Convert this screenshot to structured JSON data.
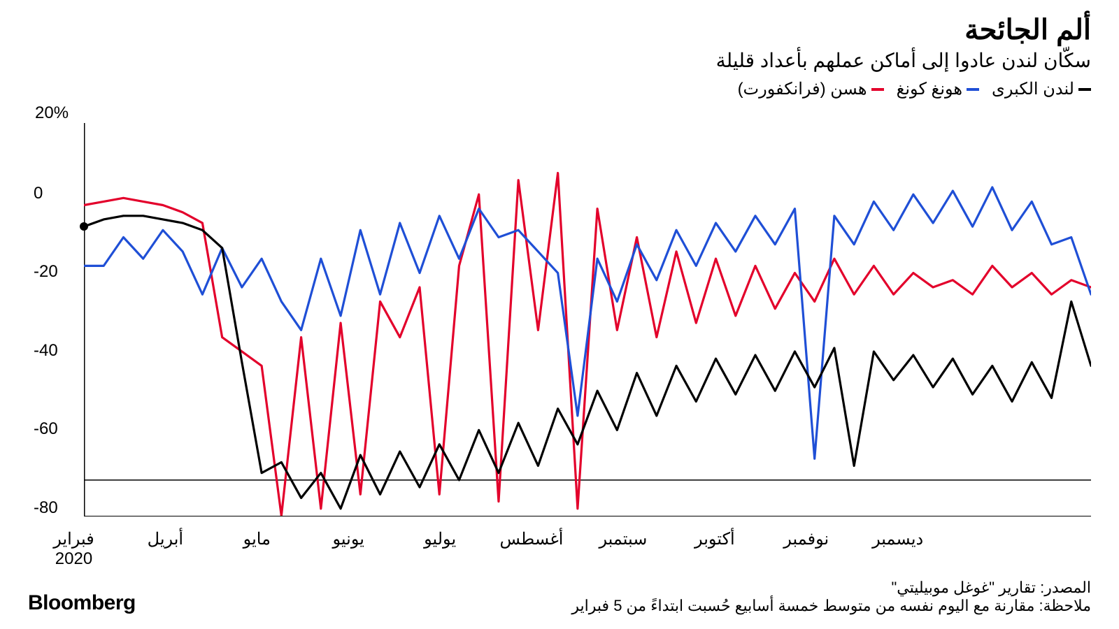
{
  "title": "ألم الجائحة",
  "subtitle": "سكّان لندن عادوا إلى أماكن عملهم بأعداد قليلة",
  "pct_label": "20%",
  "legend": [
    {
      "label": "لندن الكبرى",
      "color": "#000000"
    },
    {
      "label": "هونغ كونغ",
      "color": "#1f4fd6"
    },
    {
      "label": "هسن (فرانكفورت)",
      "color": "#e3002b"
    }
  ],
  "chart": {
    "type": "line",
    "background_color": "#ffffff",
    "ylim": [
      -90,
      20
    ],
    "yticks": [
      20,
      0,
      -20,
      -40,
      -60,
      -80
    ],
    "ytick_labels": [
      "",
      "0",
      "20-",
      "40-",
      "60-",
      "80-"
    ],
    "xticks_idx": [
      0,
      8,
      12,
      17,
      21,
      26,
      30,
      35,
      39,
      43,
      47
    ],
    "xlabels": [
      "فبراير\n2020",
      "أبريل",
      "مايو",
      "يونيو",
      "يوليو",
      "أغسطس",
      "سبتمبر",
      "أكتوبر",
      "نوفمبر",
      "ديسمبر",
      ""
    ],
    "line_width": 3.2,
    "origin_marker": {
      "x_idx": 0,
      "y": -9
    },
    "series": {
      "london": {
        "color": "#000000",
        "values": [
          -9,
          -7,
          -6,
          -6,
          -7,
          -8,
          -10,
          -15,
          -47,
          -78,
          -75,
          -85,
          -78,
          -88,
          -73,
          -84,
          -72,
          -82,
          -70,
          -80,
          -66,
          -78,
          -64,
          -76,
          -60,
          -70,
          -55,
          -66,
          -50,
          -62,
          -48,
          -58,
          -46,
          -56,
          -45,
          -55,
          -44,
          -54,
          -43,
          -76,
          -44,
          -52,
          -45,
          -54,
          -46,
          -56,
          -48,
          -58,
          -47,
          -57,
          -30,
          -48
        ]
      },
      "hongkong": {
        "color": "#1f4fd6",
        "values": [
          -20,
          -20,
          -12,
          -18,
          -10,
          -16,
          -28,
          -15,
          -26,
          -18,
          -30,
          -38,
          -18,
          -34,
          -10,
          -28,
          -8,
          -22,
          -6,
          -18,
          -4,
          -12,
          -10,
          -16,
          -22,
          -62,
          -18,
          -30,
          -14,
          -24,
          -10,
          -20,
          -8,
          -16,
          -6,
          -14,
          -4,
          -74,
          -6,
          -14,
          -2,
          -10,
          0,
          -8,
          1,
          -9,
          2,
          -10,
          -2,
          -14,
          -12,
          -28
        ]
      },
      "hessen": {
        "color": "#e3002b",
        "values": [
          -3,
          -2,
          -1,
          -2,
          -3,
          -5,
          -8,
          -40,
          -44,
          -48,
          -90,
          -40,
          -88,
          -36,
          -84,
          -30,
          -40,
          -26,
          -84,
          -20,
          0,
          -86,
          4,
          -38,
          6,
          -88,
          -4,
          -38,
          -12,
          -40,
          -16,
          -36,
          -18,
          -34,
          -20,
          -32,
          -22,
          -30,
          -18,
          -28,
          -20,
          -28,
          -22,
          -26,
          -24,
          -28,
          -20,
          -26,
          -22,
          -28,
          -24,
          -26
        ]
      }
    }
  },
  "source_label": "المصدر: تقارير \"غوغل موبيليتي\"",
  "note_label": "ملاحظة: مقارنة مع اليوم نفسه من متوسط خمسة أسابيع حُسبت ابتداءً من 5 فبراير",
  "brand": "Bloomberg"
}
